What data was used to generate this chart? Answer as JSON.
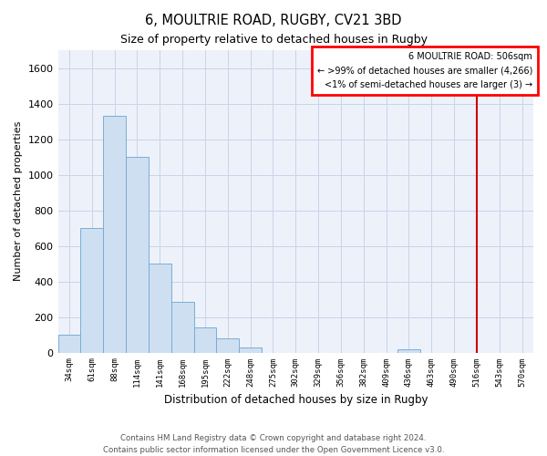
{
  "title": "6, MOULTRIE ROAD, RUGBY, CV21 3BD",
  "subtitle": "Size of property relative to detached houses in Rugby",
  "xlabel": "Distribution of detached houses by size in Rugby",
  "ylabel": "Number of detached properties",
  "bin_labels": [
    "34sqm",
    "61sqm",
    "88sqm",
    "114sqm",
    "141sqm",
    "168sqm",
    "195sqm",
    "222sqm",
    "248sqm",
    "275sqm",
    "302sqm",
    "329sqm",
    "356sqm",
    "382sqm",
    "409sqm",
    "436sqm",
    "463sqm",
    "490sqm",
    "516sqm",
    "543sqm",
    "570sqm"
  ],
  "bar_heights": [
    100,
    700,
    1330,
    1100,
    500,
    285,
    140,
    80,
    30,
    0,
    0,
    0,
    0,
    0,
    0,
    20,
    0,
    0,
    0,
    0,
    0
  ],
  "bar_color": "#cddff0",
  "bar_edge_color": "#7aadd4",
  "ylim": [
    0,
    1700
  ],
  "yticks": [
    0,
    200,
    400,
    600,
    800,
    1000,
    1200,
    1400,
    1600
  ],
  "property_sqm": 506,
  "property_line_color": "#cc0000",
  "legend_title": "6 MOULTRIE ROAD: 506sqm",
  "legend_line1": "← >99% of detached houses are smaller (4,266)",
  "legend_line2": "<1% of semi-detached houses are larger (3) →",
  "footnote1": "Contains HM Land Registry data © Crown copyright and database right 2024.",
  "footnote2": "Contains public sector information licensed under the Open Government Licence v3.0.",
  "grid_color": "#c8d4e8",
  "background_color": "#edf2fa"
}
